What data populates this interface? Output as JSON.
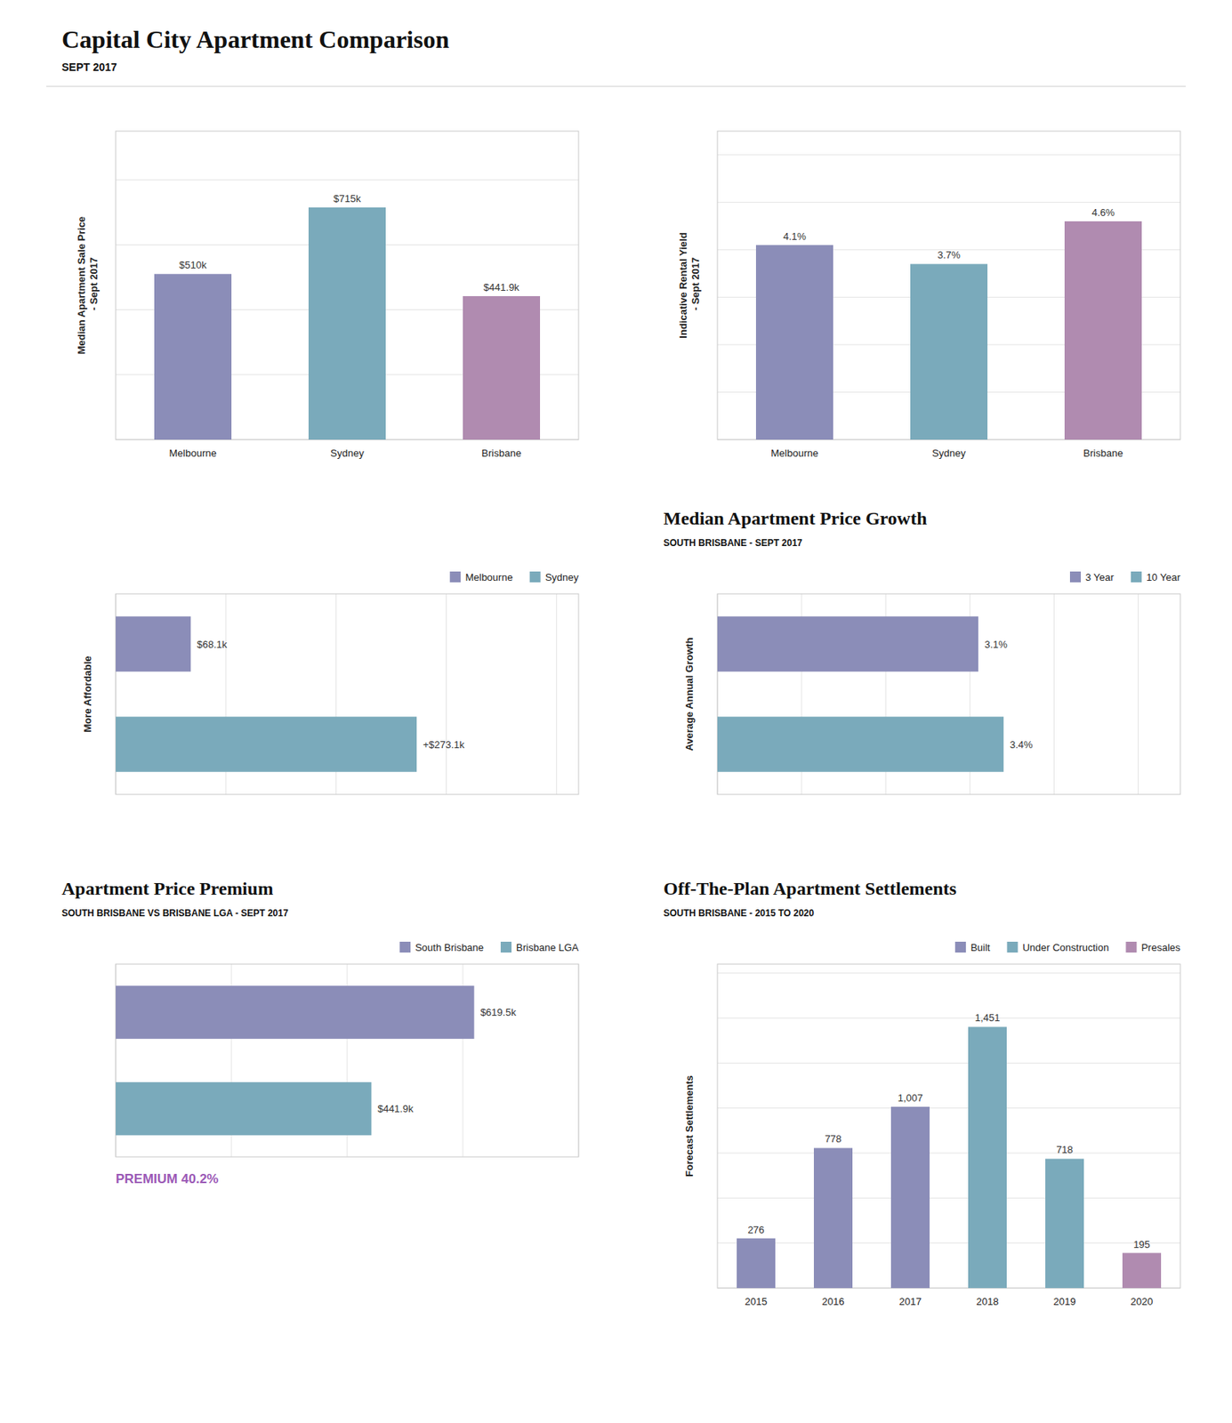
{
  "title": "Capital City Apartment Comparison",
  "subtitle": "SEPT 2017",
  "chart_data": [
    {
      "type": "bar",
      "ylabel": "Median Apartment Sale Price\n - Sept 2017",
      "categories": [
        "Melbourne",
        "Sydney",
        "Brisbane"
      ],
      "values": [
        510,
        715,
        441.9
      ],
      "value_labels": [
        "$510k",
        "$715k",
        "$441.9k"
      ],
      "colors": [
        "#8B8DB8",
        "#7AAABB",
        "#B08BB0"
      ],
      "ylim": [
        0,
        950
      ],
      "yticks": [
        0,
        200,
        400,
        600,
        800
      ],
      "grid": true,
      "data_labels": true,
      "tick_labels": "x"
    },
    {
      "type": "bar",
      "ylabel": "Indicative Rental Yield\n - Sept 2017",
      "categories": [
        "Melbourne",
        "Sydney",
        "Brisbane"
      ],
      "values": [
        4.1,
        3.7,
        4.6
      ],
      "value_labels": [
        "4.1%",
        "3.7%",
        "4.6%"
      ],
      "colors": [
        "#8B8DB8",
        "#7AAABB",
        "#B08BB0"
      ],
      "ylim": [
        0,
        6.5
      ],
      "yticks": [
        0,
        1,
        2,
        3,
        4,
        5,
        6
      ],
      "grid": true,
      "data_labels": true,
      "tick_labels": "x"
    },
    {
      "type": "bar",
      "orientation": "horizontal",
      "ylabel": "More Affordable",
      "categories": [
        "Melbourne",
        "Sydney"
      ],
      "values": [
        68.1,
        273.1
      ],
      "value_labels": [
        "$68.1k",
        "+$273.1k"
      ],
      "colors": [
        "#8B8DB8",
        "#7AAABB"
      ],
      "xlim": [
        0,
        420
      ],
      "xticks": [
        0,
        100,
        200,
        300,
        400
      ],
      "grid": true,
      "legend": "upper right",
      "data_labels": true,
      "tick_labels": false
    },
    {
      "type": "bar",
      "orientation": "horizontal",
      "title": "Median Apartment Price Growth",
      "subtitle": "SOUTH BRISBANE - SEPT 2017",
      "ylabel": "Average Annual Growth",
      "categories": [
        "3 Year",
        "10 Year"
      ],
      "values": [
        3.1,
        3.4
      ],
      "value_labels": [
        "3.1%",
        "3.4%"
      ],
      "colors": [
        "#8B8DB8",
        "#7AAABB"
      ],
      "xlim": [
        0,
        5.5
      ],
      "xticks": [
        0,
        1,
        2,
        3,
        4,
        5
      ],
      "grid": true,
      "legend": "upper right",
      "data_labels": true,
      "tick_labels": false
    },
    {
      "type": "bar",
      "orientation": "horizontal",
      "title": "Apartment Price Premium",
      "subtitle": "SOUTH BRISBANE VS BRISBANE LGA - SEPT 2017",
      "categories": [
        "South Brisbane",
        "Brisbane LGA"
      ],
      "values": [
        619.5,
        441.9
      ],
      "value_labels": [
        "$619.5k",
        "$441.9k"
      ],
      "colors": [
        "#8B8DB8",
        "#7AAABB"
      ],
      "xlim": [
        0,
        800
      ],
      "xticks": [
        0,
        200,
        400,
        600,
        800
      ],
      "grid": true,
      "legend": "upper right",
      "data_labels": true,
      "tick_labels": false,
      "annotations": [
        {
          "text": "PREMIUM 40.2%",
          "color": "#9B59B6"
        }
      ]
    },
    {
      "type": "bar",
      "title": "Off-The-Plan Apartment Settlements",
      "subtitle": "SOUTH BRISBANE - 2015 TO 2020",
      "ylabel": "Forecast Settlements",
      "categories": [
        "2015",
        "2016",
        "2017",
        "2018",
        "2019",
        "2020"
      ],
      "series": [
        {
          "name": "Built",
          "color": "#8B8DB8",
          "values": [
            276,
            778,
            1007,
            null,
            null,
            null
          ],
          "value_labels": [
            "276",
            "778",
            "1,007",
            null,
            null,
            null
          ]
        },
        {
          "name": "Under Construction",
          "color": "#7AAABB",
          "values": [
            null,
            null,
            null,
            1451,
            718,
            null
          ],
          "value_labels": [
            null,
            null,
            null,
            "1,451",
            "718",
            null
          ]
        },
        {
          "name": "Presales",
          "color": "#B08BB0",
          "values": [
            null,
            null,
            null,
            null,
            null,
            195
          ],
          "value_labels": [
            null,
            null,
            null,
            null,
            null,
            "195"
          ]
        }
      ],
      "stacked": true,
      "ylim": [
        0,
        1800
      ],
      "yticks": [
        0,
        250,
        500,
        750,
        1000,
        1250,
        1500,
        1750
      ],
      "grid": true,
      "legend": "upper right",
      "data_labels": true,
      "tick_labels": "x"
    }
  ]
}
